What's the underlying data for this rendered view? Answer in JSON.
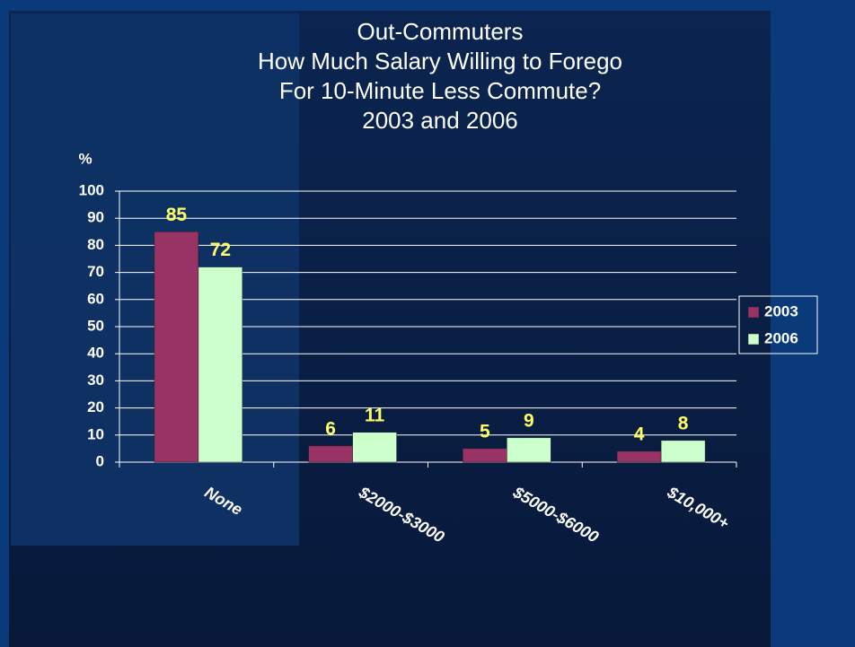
{
  "chart_data": {
    "type": "bar",
    "title": [
      "Out-Commuters",
      "How Much Salary Willing to Forego",
      "For 10-Minute Less Commute?",
      "2003 and 2006"
    ],
    "y_label": "%",
    "categories": [
      "None",
      "$2000-$3000",
      "$5000-$6000",
      "$10,000+"
    ],
    "series": [
      {
        "name": "2003",
        "color": "#993366",
        "values": [
          85,
          6,
          5,
          4
        ]
      },
      {
        "name": "2006",
        "color": "#ccffcc",
        "values": [
          72,
          11,
          9,
          8
        ]
      }
    ],
    "ylim": [
      0,
      100
    ],
    "yticks": [
      0,
      10,
      20,
      30,
      40,
      50,
      60,
      70,
      80,
      90,
      100
    ],
    "grid": true,
    "legend": "right",
    "value_label_color": "#ffff66"
  }
}
